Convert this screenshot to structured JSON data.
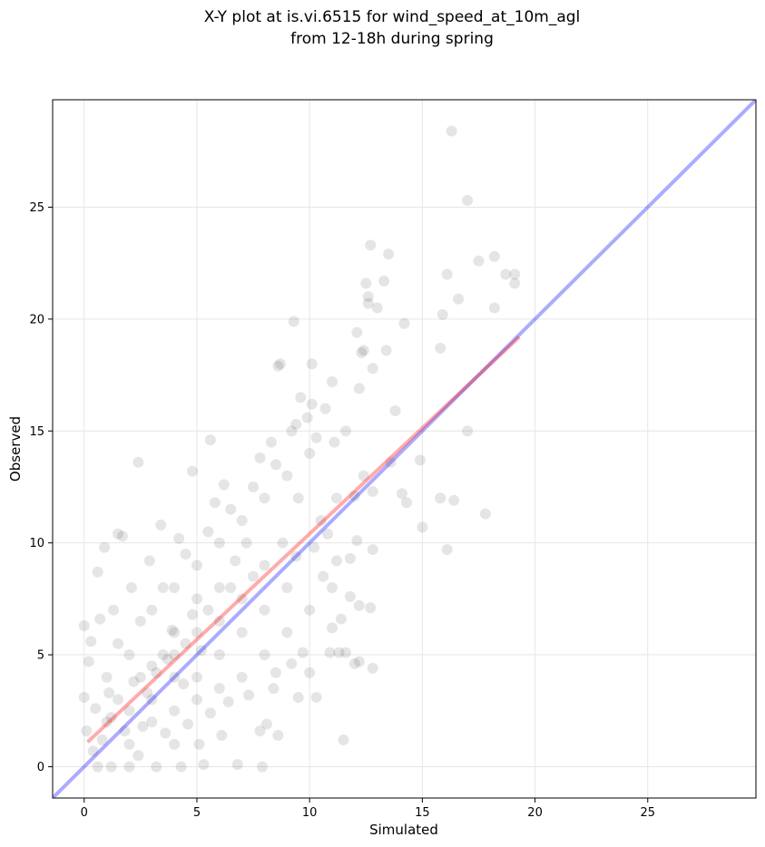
{
  "chart_data": {
    "type": "scatter",
    "title": [
      "X-Y plot at is.vi.6515 for wind_speed_at_10m_agl",
      "from 12-18h during spring"
    ],
    "xlabel": "Simulated",
    "ylabel": "Observed",
    "xlim": [
      -1.4,
      29.8
    ],
    "ylim": [
      -1.4,
      29.8
    ],
    "xticks": [
      0,
      5,
      10,
      15,
      20,
      25
    ],
    "yticks": [
      0,
      5,
      10,
      15,
      20,
      25
    ],
    "grid": true,
    "points": {
      "color": "#000000",
      "x": [
        16.3,
        17,
        12.7,
        13.5,
        16.1,
        17.5,
        18.2,
        18.7,
        19.1,
        19.1,
        13.3,
        12.5,
        12.6,
        12.6,
        13,
        16.6,
        15.9,
        18.2,
        9.3,
        14.2,
        12.1,
        12.3,
        12.4,
        13.4,
        15.8,
        8.7,
        8.6,
        10.1,
        12.8,
        11,
        12.2,
        9.6,
        10.1,
        10.7,
        9.9,
        9.4,
        10.3,
        11.1,
        11.6,
        13.8,
        17,
        12.8,
        14.1,
        14.3,
        15.8,
        16.4,
        17.8,
        15,
        16.1,
        12.8,
        12.1,
        11.5,
        12.8,
        12.2,
        10.3,
        9.5,
        7.9,
        6.8,
        2.4,
        5.6,
        4.8,
        14.9,
        13.6,
        12.4,
        12,
        11.2,
        12.7,
        12.2,
        11.3,
        10.9,
        11.6,
        12,
        11.8,
        10.6,
        11,
        11.8,
        11.4,
        10,
        9.7,
        9.2,
        8.5,
        8.4,
        7.8,
        8.1,
        8.6,
        5.3,
        4.3,
        3.2,
        2,
        1.2,
        0.6,
        1.5,
        1.7,
        0.6,
        0.9,
        0,
        0.2,
        0,
        0.1,
        0.4,
        1,
        1.5,
        2,
        2.5,
        3,
        3.5,
        4,
        4.5,
        5,
        5.5,
        6,
        6.5,
        7,
        7.5,
        8,
        3,
        4,
        5,
        6,
        2,
        3,
        4,
        5,
        6,
        7,
        8,
        9,
        10,
        2,
        3,
        4,
        5,
        6,
        7,
        8,
        9,
        10,
        11,
        1,
        1.5,
        2.5,
        3.5,
        4.5,
        5.5,
        6.5,
        7.5,
        8.5,
        9.5,
        10.5,
        8.8,
        9,
        7,
        6,
        5,
        4,
        3.2,
        2.8,
        3.7,
        4.4,
        5.2,
        4.8,
        3.9,
        2.2,
        1.8,
        1.2,
        0.8,
        1.1,
        2.6,
        3.6,
        4.6,
        5.6,
        6.4,
        7.3,
        0.5,
        0.3,
        0.7,
        1.3,
        2.1,
        2.9,
        3.4,
        4.2,
        5.8,
        6.2,
        7.8,
        8.3,
        9.2,
        6.7,
        7.2,
        8,
        9.4,
        10.2,
        10.8,
        11.2,
        5.1,
        6.1,
        4,
        2.4
      ],
      "y": [
        28.4,
        25.3,
        23.3,
        22.9,
        22,
        22.6,
        22.8,
        22,
        22,
        21.6,
        21.7,
        21.6,
        21,
        20.7,
        20.5,
        20.9,
        20.2,
        20.5,
        19.9,
        19.8,
        19.4,
        18.5,
        18.6,
        18.6,
        18.7,
        18,
        17.9,
        18,
        17.8,
        17.2,
        16.9,
        16.5,
        16.2,
        16,
        15.6,
        15.3,
        14.7,
        14.5,
        15,
        15.9,
        15,
        12.3,
        12.2,
        11.8,
        12,
        11.9,
        11.3,
        10.7,
        9.7,
        9.7,
        10.1,
        1.2,
        4.4,
        4.7,
        3.1,
        3.1,
        0,
        0.1,
        13.6,
        14.6,
        13.2,
        13.7,
        13.6,
        13,
        12.1,
        12,
        7.1,
        7.2,
        5.1,
        5.1,
        5.1,
        4.6,
        9.3,
        8.5,
        6.2,
        7.6,
        6.6,
        4.2,
        5.1,
        4.6,
        4.2,
        3.5,
        1.6,
        1.9,
        1.4,
        0.1,
        0,
        0,
        0,
        0,
        0,
        10.4,
        10.3,
        8.7,
        9.8,
        6.3,
        4.7,
        3.1,
        1.6,
        0.7,
        2,
        3,
        2.5,
        4,
        4.5,
        5,
        4,
        5.5,
        6,
        7,
        6.5,
        8,
        7.5,
        8.5,
        9,
        3,
        6,
        4,
        5,
        5,
        7,
        8,
        9,
        10,
        11,
        12,
        13,
        14,
        1,
        2,
        2.5,
        3,
        3.5,
        4,
        5,
        6,
        7,
        8,
        4,
        5.5,
        6.5,
        8,
        9.5,
        10.5,
        11.5,
        12.5,
        13.5,
        12,
        11,
        10,
        8,
        6,
        8,
        7.5,
        5,
        4.2,
        3.3,
        4.8,
        3.7,
        5.2,
        6.8,
        6.1,
        3.8,
        1.6,
        2.2,
        1.2,
        3.3,
        1.8,
        1.5,
        1.9,
        2.4,
        2.9,
        3.2,
        2.6,
        5.6,
        6.6,
        7,
        8,
        9.2,
        10.8,
        10.2,
        11.8,
        12.6,
        13.8,
        14.5,
        15,
        9.2,
        10,
        7,
        9.4,
        9.8,
        10.4,
        9.2,
        1,
        1.4,
        1,
        0.5
      ]
    },
    "lines": [
      {
        "color": "#0000ff",
        "x": [
          -1.4,
          29.8
        ],
        "y": [
          -1.4,
          29.8
        ]
      },
      {
        "color": "#ff0000",
        "x": [
          0.15,
          19.3
        ],
        "y": [
          1.1,
          19.2
        ]
      }
    ]
  }
}
